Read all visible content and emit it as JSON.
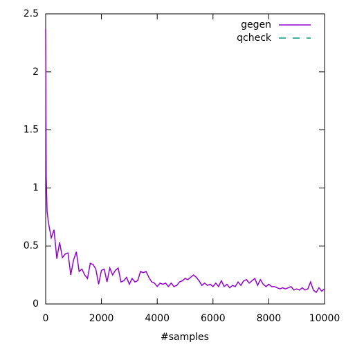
{
  "chart_data": {
    "type": "line",
    "xlabel": "#samples",
    "x": [
      0,
      20,
      50,
      100,
      200,
      300,
      400,
      500,
      600,
      700,
      800,
      900,
      1000,
      1100,
      1200,
      1300,
      1400,
      1500,
      1600,
      1700,
      1800,
      1900,
      2000,
      2100,
      2200,
      2300,
      2400,
      2500,
      2600,
      2700,
      2800,
      2900,
      3000,
      3100,
      3200,
      3300,
      3400,
      3500,
      3600,
      3700,
      3800,
      3900,
      4000,
      4100,
      4200,
      4300,
      4400,
      4500,
      4600,
      4700,
      4800,
      4900,
      5000,
      5100,
      5200,
      5300,
      5400,
      5500,
      5600,
      5700,
      5800,
      5900,
      6000,
      6100,
      6200,
      6300,
      6400,
      6500,
      6600,
      6700,
      6800,
      6900,
      7000,
      7100,
      7200,
      7300,
      7400,
      7500,
      7600,
      7700,
      7800,
      7900,
      8000,
      8100,
      8200,
      8300,
      8400,
      8500,
      8600,
      8700,
      8800,
      8900,
      9000,
      9100,
      9200,
      9300,
      9400,
      9500,
      9600,
      9700,
      9800,
      9900,
      10000
    ],
    "series": [
      {
        "name": "gegen",
        "color": "#9400d3",
        "dash": false,
        "values": [
          2.37,
          1.1,
          0.8,
          0.7,
          0.57,
          0.64,
          0.39,
          0.53,
          0.4,
          0.43,
          0.44,
          0.25,
          0.38,
          0.45,
          0.28,
          0.3,
          0.25,
          0.22,
          0.35,
          0.34,
          0.3,
          0.17,
          0.29,
          0.3,
          0.19,
          0.31,
          0.25,
          0.29,
          0.31,
          0.19,
          0.2,
          0.23,
          0.17,
          0.22,
          0.19,
          0.2,
          0.28,
          0.27,
          0.28,
          0.23,
          0.19,
          0.18,
          0.15,
          0.18,
          0.17,
          0.18,
          0.15,
          0.18,
          0.15,
          0.16,
          0.19,
          0.2,
          0.22,
          0.21,
          0.23,
          0.25,
          0.23,
          0.2,
          0.16,
          0.18,
          0.16,
          0.17,
          0.15,
          0.18,
          0.15,
          0.2,
          0.15,
          0.17,
          0.14,
          0.16,
          0.15,
          0.19,
          0.16,
          0.2,
          0.21,
          0.18,
          0.2,
          0.22,
          0.16,
          0.21,
          0.17,
          0.15,
          0.17,
          0.15,
          0.15,
          0.14,
          0.13,
          0.14,
          0.13,
          0.14,
          0.15,
          0.12,
          0.13,
          0.12,
          0.14,
          0.12,
          0.13,
          0.19,
          0.12,
          0.1,
          0.14,
          0.11,
          0.13
        ]
      },
      {
        "name": "qcheck",
        "color": "#009e73",
        "dash": true,
        "values": [
          null,
          null,
          null,
          null,
          null,
          null,
          null,
          null,
          null,
          null,
          null,
          null,
          null,
          null,
          null,
          null,
          null,
          null,
          null,
          null,
          null,
          null,
          null,
          null,
          null,
          null,
          null,
          null,
          null,
          null,
          null,
          null,
          null,
          null,
          null,
          null,
          null,
          null,
          null,
          null,
          null,
          null,
          null,
          null,
          null,
          null,
          null,
          null,
          null,
          null,
          null,
          null,
          null,
          null,
          null,
          null,
          null,
          null,
          null,
          null,
          null,
          null,
          null,
          null,
          null,
          null,
          null,
          null,
          null,
          null,
          null,
          null,
          null,
          null,
          null,
          null,
          null,
          null,
          null,
          null,
          null,
          null,
          null,
          null,
          null,
          null,
          null,
          null,
          null,
          null,
          null,
          null,
          null,
          null,
          null,
          null,
          null,
          null,
          null,
          null,
          null,
          null,
          null
        ]
      }
    ],
    "xlim": [
      0,
      10000
    ],
    "xticks": [
      0,
      2000,
      4000,
      6000,
      8000,
      10000
    ],
    "ylim": [
      0,
      2.5
    ],
    "yticks": [
      0,
      0.5,
      1,
      1.5,
      2,
      2.5
    ],
    "legend": "top-right"
  }
}
